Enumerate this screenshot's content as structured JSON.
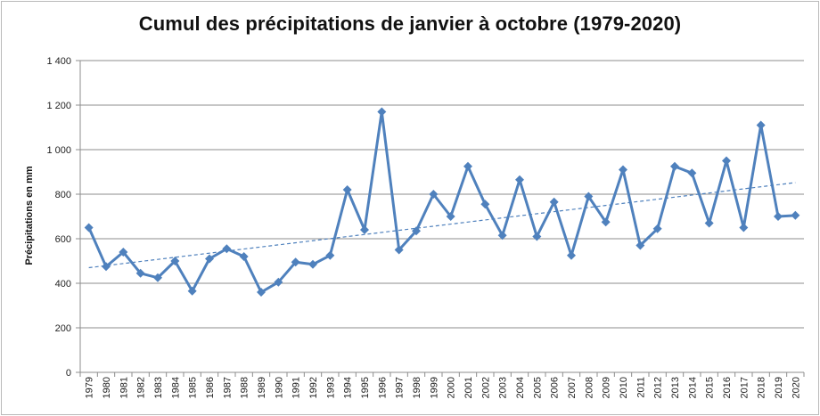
{
  "chart_data": {
    "type": "line",
    "title": "Cumul des précipitations de janvier à octobre (1979-2020)",
    "xlabel": "",
    "ylabel": "Précipitations en mm",
    "ylim": [
      0,
      1400
    ],
    "yticks": [
      0,
      200,
      400,
      600,
      800,
      1000,
      1200,
      1400
    ],
    "ytick_labels": [
      "0",
      "200",
      "400",
      "600",
      "800",
      "1 000",
      "1 200",
      "1 400"
    ],
    "grid": "horizontal",
    "legend": "none",
    "categories": [
      "1979",
      "1980",
      "1981",
      "1982",
      "1983",
      "1984",
      "1985",
      "1986",
      "1987",
      "1988",
      "1989",
      "1990",
      "1991",
      "1992",
      "1993",
      "1994",
      "1995",
      "1996",
      "1997",
      "1998",
      "1999",
      "2000",
      "2001",
      "2002",
      "2003",
      "2004",
      "2005",
      "2006",
      "2007",
      "2008",
      "2009",
      "2010",
      "2011",
      "2012",
      "2013",
      "2014",
      "2015",
      "2016",
      "2017",
      "2018",
      "2019",
      "2020"
    ],
    "series": [
      {
        "color": "#4f81bd",
        "marker": "diamond",
        "values": [
          650,
          475,
          540,
          445,
          425,
          500,
          365,
          510,
          555,
          520,
          360,
          405,
          495,
          485,
          525,
          820,
          640,
          1170,
          550,
          635,
          800,
          700,
          925,
          755,
          615,
          865,
          610,
          765,
          525,
          790,
          675,
          910,
          570,
          645,
          925,
          895,
          670,
          950,
          650,
          1110,
          700,
          705
        ]
      }
    ],
    "trendline": {
      "type": "linear",
      "style": "dashed",
      "color": "#4f81bd",
      "start": 470,
      "end": 852
    }
  }
}
